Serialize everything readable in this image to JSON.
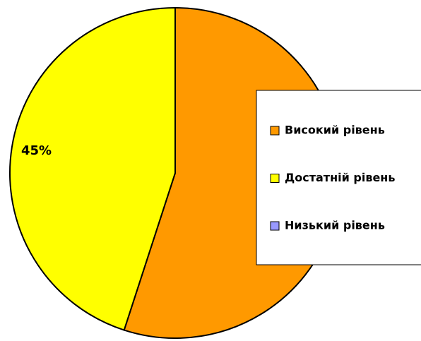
{
  "chart_data": {
    "type": "pie",
    "categories": [
      "Високий рівень",
      "Достатній рівень",
      "Низький рівень"
    ],
    "values": [
      55,
      45,
      0
    ],
    "value_labels": [
      null,
      "45%",
      null
    ],
    "colors": [
      "#ff9900",
      "#ffff00",
      "#9999ff"
    ],
    "legend": "right"
  }
}
